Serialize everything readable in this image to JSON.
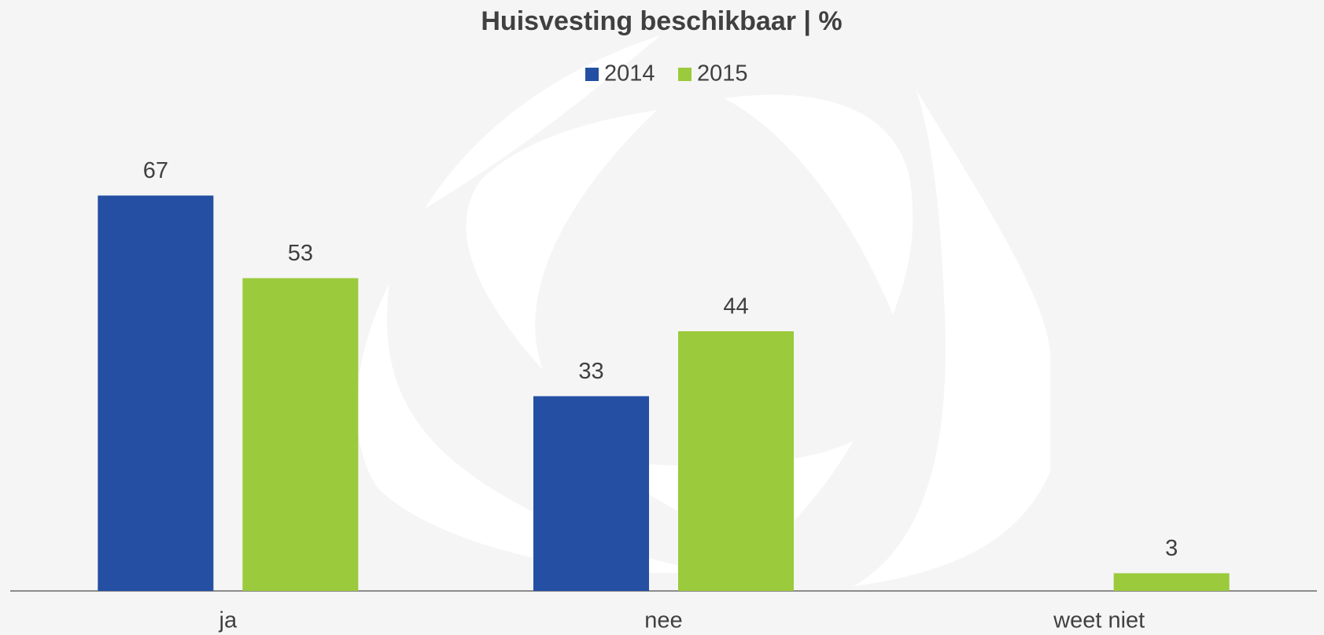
{
  "chart_data": {
    "type": "bar",
    "title": "Huisvesting beschikbaar | %",
    "categories": [
      "ja",
      "nee",
      "weet niet"
    ],
    "series": [
      {
        "name": "2014",
        "color": "#244fa3",
        "values": [
          67,
          33,
          null
        ]
      },
      {
        "name": "2015",
        "color": "#9bca3c",
        "values": [
          53,
          44,
          3
        ]
      }
    ],
    "ylim": [
      0,
      80
    ]
  }
}
